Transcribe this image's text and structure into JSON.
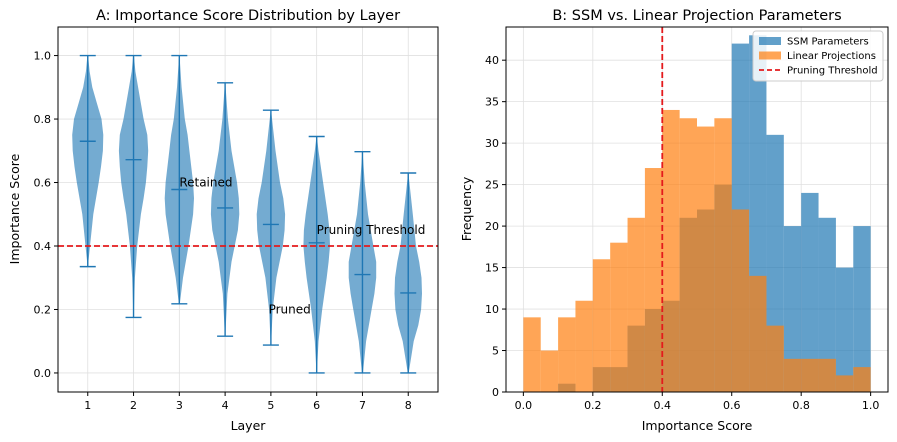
{
  "chart_data": [
    {
      "type": "violin",
      "title": "A: Importance Score Distribution by Layer",
      "xlabel": "Layer",
      "ylabel": "Importance Score",
      "categories": [
        "1",
        "2",
        "3",
        "4",
        "5",
        "6",
        "7",
        "8"
      ],
      "xlim": [
        0.35,
        8.65
      ],
      "ylim": [
        -0.06,
        1.09
      ],
      "yticks": [
        0.0,
        0.2,
        0.4,
        0.6,
        0.8,
        1.0
      ],
      "ytick_labels": [
        "0.0",
        "0.2",
        "0.4",
        "0.6",
        "0.8",
        "1.0"
      ],
      "color": "#1f77b4",
      "violins": [
        {
          "layer": 1,
          "min": 0.335,
          "median": 0.73,
          "max": 1.0,
          "profile": [
            [
              0.335,
              0.004
            ],
            [
              0.4,
              0.05
            ],
            [
              0.5,
              0.12
            ],
            [
              0.6,
              0.24
            ],
            [
              0.65,
              0.29
            ],
            [
              0.7,
              0.33
            ],
            [
              0.75,
              0.34
            ],
            [
              0.8,
              0.3
            ],
            [
              0.85,
              0.2
            ],
            [
              0.9,
              0.1
            ],
            [
              0.95,
              0.04
            ],
            [
              1.0,
              0.008
            ]
          ]
        },
        {
          "layer": 2,
          "min": 0.175,
          "median": 0.672,
          "max": 1.0,
          "profile": [
            [
              0.175,
              0.004
            ],
            [
              0.3,
              0.03
            ],
            [
              0.4,
              0.08
            ],
            [
              0.5,
              0.16
            ],
            [
              0.55,
              0.22
            ],
            [
              0.6,
              0.27
            ],
            [
              0.65,
              0.3
            ],
            [
              0.7,
              0.32
            ],
            [
              0.75,
              0.3
            ],
            [
              0.8,
              0.22
            ],
            [
              0.9,
              0.1
            ],
            [
              0.95,
              0.04
            ],
            [
              1.0,
              0.008
            ]
          ]
        },
        {
          "layer": 3,
          "min": 0.218,
          "median": 0.578,
          "max": 1.0,
          "profile": [
            [
              0.218,
              0.01
            ],
            [
              0.3,
              0.08
            ],
            [
              0.4,
              0.2
            ],
            [
              0.5,
              0.3
            ],
            [
              0.55,
              0.32
            ],
            [
              0.6,
              0.3
            ],
            [
              0.7,
              0.22
            ],
            [
              0.75,
              0.18
            ],
            [
              0.8,
              0.12
            ],
            [
              0.9,
              0.05
            ],
            [
              1.0,
              0.004
            ]
          ]
        },
        {
          "layer": 4,
          "min": 0.116,
          "median": 0.52,
          "max": 0.914,
          "profile": [
            [
              0.116,
              0.004
            ],
            [
              0.25,
              0.05
            ],
            [
              0.35,
              0.14
            ],
            [
              0.45,
              0.28
            ],
            [
              0.5,
              0.31
            ],
            [
              0.55,
              0.3
            ],
            [
              0.6,
              0.26
            ],
            [
              0.7,
              0.14
            ],
            [
              0.8,
              0.06
            ],
            [
              0.914,
              0.004
            ]
          ]
        },
        {
          "layer": 5,
          "min": 0.088,
          "median": 0.468,
          "max": 0.828,
          "profile": [
            [
              0.088,
              0.004
            ],
            [
              0.2,
              0.04
            ],
            [
              0.3,
              0.12
            ],
            [
              0.4,
              0.26
            ],
            [
              0.45,
              0.3
            ],
            [
              0.5,
              0.31
            ],
            [
              0.55,
              0.27
            ],
            [
              0.6,
              0.2
            ],
            [
              0.7,
              0.1
            ],
            [
              0.828,
              0.004
            ]
          ]
        },
        {
          "layer": 6,
          "min": 0.0,
          "median": 0.41,
          "max": 0.745,
          "profile": [
            [
              0.0,
              0.004
            ],
            [
              0.1,
              0.04
            ],
            [
              0.2,
              0.12
            ],
            [
              0.3,
              0.22
            ],
            [
              0.35,
              0.26
            ],
            [
              0.4,
              0.29
            ],
            [
              0.45,
              0.28
            ],
            [
              0.5,
              0.24
            ],
            [
              0.6,
              0.14
            ],
            [
              0.7,
              0.04
            ],
            [
              0.745,
              0.004
            ]
          ]
        },
        {
          "layer": 7,
          "min": 0.0,
          "median": 0.31,
          "max": 0.697,
          "profile": [
            [
              0.0,
              0.01
            ],
            [
              0.1,
              0.08
            ],
            [
              0.2,
              0.2
            ],
            [
              0.25,
              0.26
            ],
            [
              0.3,
              0.3
            ],
            [
              0.35,
              0.3
            ],
            [
              0.4,
              0.24
            ],
            [
              0.5,
              0.12
            ],
            [
              0.6,
              0.05
            ],
            [
              0.697,
              0.004
            ]
          ]
        },
        {
          "layer": 8,
          "min": 0.0,
          "median": 0.252,
          "max": 0.63,
          "profile": [
            [
              0.0,
              0.01
            ],
            [
              0.1,
              0.12
            ],
            [
              0.15,
              0.22
            ],
            [
              0.2,
              0.28
            ],
            [
              0.25,
              0.3
            ],
            [
              0.3,
              0.29
            ],
            [
              0.35,
              0.24
            ],
            [
              0.4,
              0.17
            ],
            [
              0.5,
              0.1
            ],
            [
              0.63,
              0.004
            ]
          ]
        }
      ],
      "threshold": {
        "value": 0.4,
        "label": "Pruning Threshold",
        "color": "#e41a1c"
      },
      "annotations": [
        {
          "text": "Retained",
          "x": 3.0,
          "y": 0.6
        },
        {
          "text": "Pruned",
          "x": 4.95,
          "y": 0.2
        },
        {
          "text": "Pruning Threshold",
          "x": 6.0,
          "y": 0.45
        }
      ]
    },
    {
      "type": "histogram",
      "title": "B: SSM vs. Linear Projection Parameters",
      "xlabel": "Importance Score",
      "ylabel": "Frequency",
      "xlim": [
        -0.05,
        1.05
      ],
      "ylim": [
        0,
        44
      ],
      "xticks": [
        0.0,
        0.2,
        0.4,
        0.6,
        0.8,
        1.0
      ],
      "xtick_labels": [
        "0.0",
        "0.2",
        "0.4",
        "0.6",
        "0.8",
        "1.0"
      ],
      "yticks": [
        0,
        5,
        10,
        15,
        20,
        25,
        30,
        35,
        40
      ],
      "ytick_labels": [
        "0",
        "5",
        "10",
        "15",
        "20",
        "25",
        "30",
        "35",
        "40"
      ],
      "bin_edges": [
        0.0,
        0.05,
        0.1,
        0.15,
        0.2,
        0.25,
        0.3,
        0.35,
        0.4,
        0.45,
        0.5,
        0.55,
        0.6,
        0.65,
        0.7,
        0.75,
        0.8,
        0.85,
        0.9,
        0.95,
        1.0
      ],
      "series": [
        {
          "name": "SSM Parameters",
          "color": "#1f77b4",
          "values": [
            0,
            0,
            1,
            0,
            3,
            3,
            8,
            10,
            11,
            21,
            22,
            25,
            42,
            43,
            31,
            20,
            24,
            21,
            15,
            20
          ]
        },
        {
          "name": "Linear Projections",
          "color": "#ff7f0e",
          "values": [
            9,
            5,
            9,
            11,
            16,
            18,
            21,
            27,
            34,
            33,
            32,
            33,
            22,
            14,
            8,
            4,
            4,
            4,
            2,
            3
          ]
        }
      ],
      "threshold": {
        "value": 0.4,
        "label": "Pruning Threshold",
        "color": "#e41a1c"
      },
      "legend": {
        "position": "top-right",
        "entries": [
          "SSM Parameters",
          "Linear Projections",
          "Pruning Threshold"
        ]
      }
    }
  ]
}
